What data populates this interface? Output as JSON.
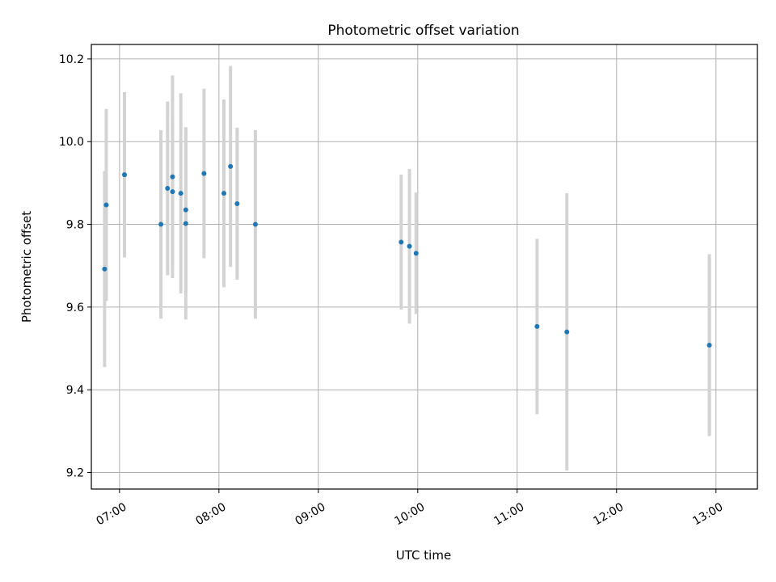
{
  "chart_data": {
    "type": "scatter",
    "title": "Photometric offset variation",
    "xlabel": "UTC time",
    "ylabel": "Photometric offset",
    "x_ticks": [
      "07:00",
      "08:00",
      "09:00",
      "10:00",
      "11:00",
      "12:00",
      "13:00"
    ],
    "y_ticks": [
      "9.2",
      "9.4",
      "9.6",
      "9.8",
      "10.0",
      "10.2"
    ],
    "xlim": [
      "06:43",
      "13:25"
    ],
    "ylim": [
      9.16,
      10.235
    ],
    "grid": true,
    "colors": {
      "point": "#1f77b4",
      "errorbar": "#d3d3d3",
      "grid": "#b0b0b0"
    },
    "points": [
      {
        "time": "06:51",
        "y": 9.692,
        "err": 0.237
      },
      {
        "time": "06:52",
        "y": 9.847,
        "err": 0.232
      },
      {
        "time": "07:03",
        "y": 9.92,
        "err": 0.2
      },
      {
        "time": "07:25",
        "y": 9.8,
        "err": 0.228
      },
      {
        "time": "07:29",
        "y": 9.887,
        "err": 0.21
      },
      {
        "time": "07:32",
        "y": 9.879,
        "err": 0.176
      },
      {
        "time": "07:32",
        "y": 9.915,
        "err": 0.245
      },
      {
        "time": "07:37",
        "y": 9.875,
        "err": 0.242
      },
      {
        "time": "07:40",
        "y": 9.835,
        "err": 0.2
      },
      {
        "time": "07:40",
        "y": 9.802,
        "err": 0.232
      },
      {
        "time": "07:51",
        "y": 9.923,
        "err": 0.205
      },
      {
        "time": "08:03",
        "y": 9.875,
        "err": 0.227
      },
      {
        "time": "08:07",
        "y": 9.94,
        "err": 0.243
      },
      {
        "time": "08:11",
        "y": 9.85,
        "err": 0.184
      },
      {
        "time": "08:22",
        "y": 9.8,
        "err": 0.228
      },
      {
        "time": "09:50",
        "y": 9.757,
        "err": 0.163
      },
      {
        "time": "09:55",
        "y": 9.747,
        "err": 0.187
      },
      {
        "time": "09:59",
        "y": 9.73,
        "err": 0.147
      },
      {
        "time": "11:12",
        "y": 9.553,
        "err": 0.212
      },
      {
        "time": "11:30",
        "y": 9.54,
        "err": 0.335
      },
      {
        "time": "12:56",
        "y": 9.508,
        "err": 0.22
      }
    ]
  }
}
